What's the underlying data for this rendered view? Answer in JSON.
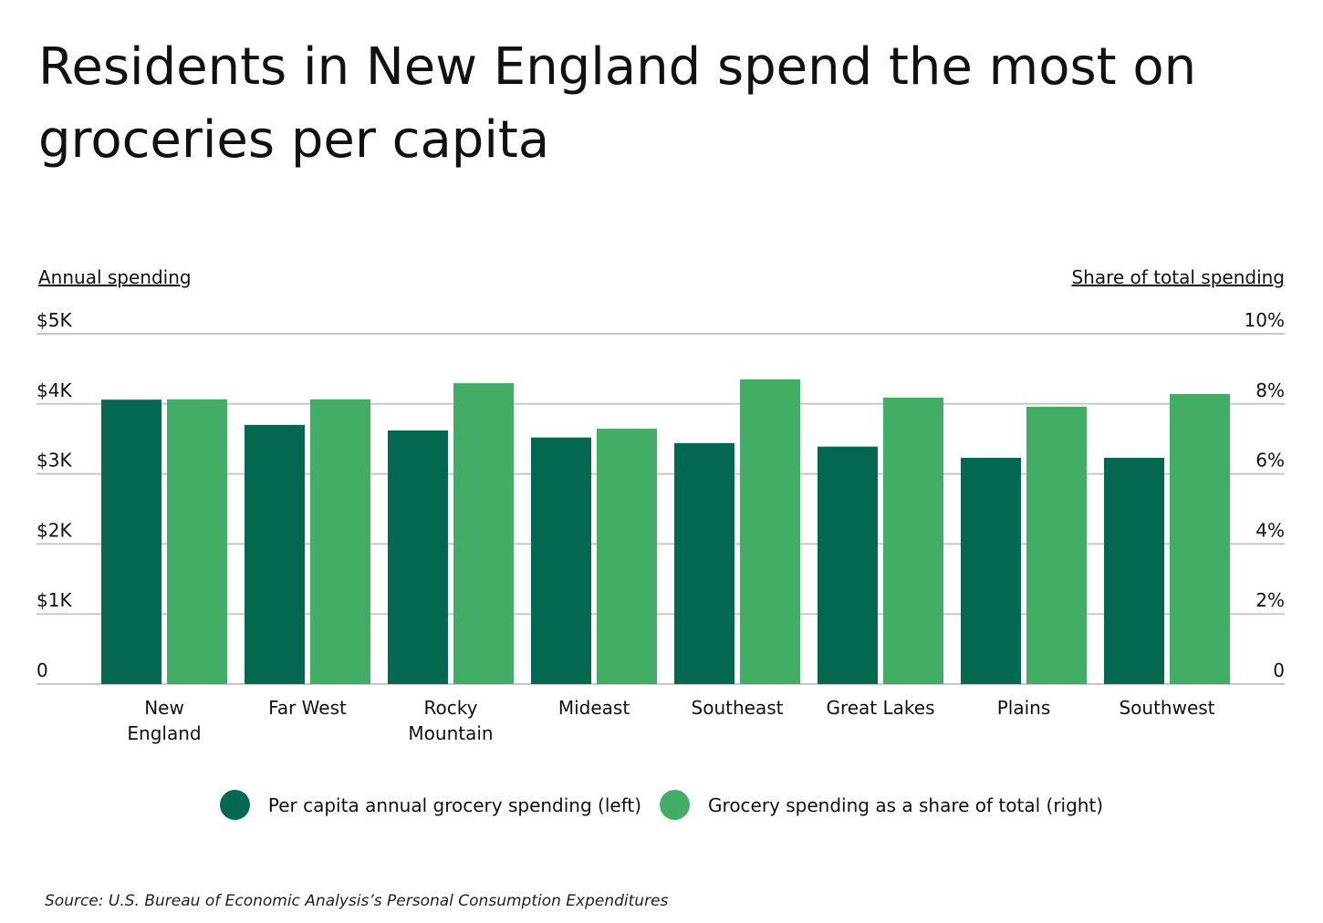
{
  "chart_data": {
    "type": "bar",
    "title": "Residents in New England spend the most on groceries per capita",
    "y_label": "Annual spending",
    "y2_label": "Share of total spending",
    "categories": [
      "New England",
      "Far West",
      "Rocky Mountain",
      "Mideast",
      "Southeast",
      "Great Lakes",
      "Plains",
      "Southwest"
    ],
    "series": [
      {
        "name": "Per capita annual grocery spending (left)",
        "color": "#02684f",
        "values": [
          4060,
          3700,
          3620,
          3520,
          3440,
          3390,
          3230,
          3230
        ]
      },
      {
        "name": "Grocery spending as a share of total (right)",
        "color": "#42ad64",
        "axis": "y2",
        "values": [
          8.13,
          8.13,
          8.59,
          7.29,
          8.7,
          8.18,
          7.92,
          8.28
        ]
      }
    ],
    "ylim": [
      0,
      5000
    ],
    "yticks": [
      0,
      {
        "value": 1000,
        "label": "$1K"
      },
      {
        "value": 2000,
        "label": "$2K"
      },
      {
        "value": 3000,
        "label": "$3K"
      },
      {
        "value": 4000,
        "label": "$4K"
      },
      {
        "value": 5000,
        "label": "$5K"
      }
    ],
    "y2lim": [
      0,
      10
    ],
    "y2ticks": [
      0,
      {
        "value": 2,
        "label": "2%"
      },
      {
        "value": 4,
        "label": "4%"
      },
      {
        "value": 6,
        "label": "6%"
      },
      {
        "value": 8,
        "label": "8%"
      },
      {
        "value": 10,
        "label": "10%"
      }
    ],
    "grid": true,
    "legend": "bottom",
    "source": "Source:  U.S. Bureau of Economic Analysis’s Personal Consumption Expenditures"
  }
}
